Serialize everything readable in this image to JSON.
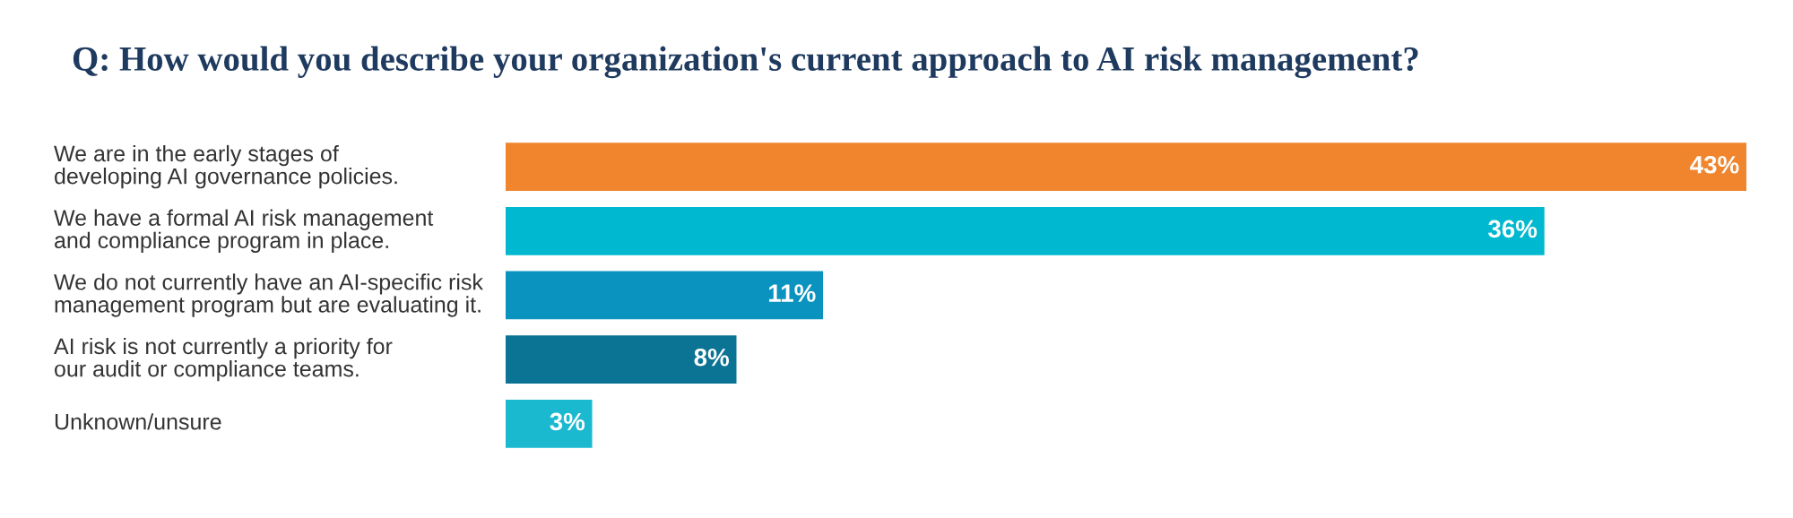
{
  "chart_data": {
    "type": "bar",
    "orientation": "horizontal",
    "title": "Q: How would you describe your organization's current approach to AI risk management?",
    "categories": [
      "We are in the early stages of\ndeveloping AI governance policies.",
      "We have a formal AI risk management\nand compliance program in place.",
      "We do not currently have an AI-specific risk\nmanagement program but are evaluating it.",
      "AI risk is not currently a priority for\nour audit or compliance teams.",
      "Unknown/unsure"
    ],
    "values": [
      43,
      36,
      11,
      8,
      3
    ],
    "colors": [
      "#f0852d",
      "#00b8cf",
      "#0a93bf",
      "#0b7394",
      "#1ab9d0"
    ],
    "value_labels": [
      "43%",
      "36%",
      "11%",
      "8%",
      "3%"
    ],
    "grid": false,
    "legend": false,
    "tick_labels": false
  }
}
